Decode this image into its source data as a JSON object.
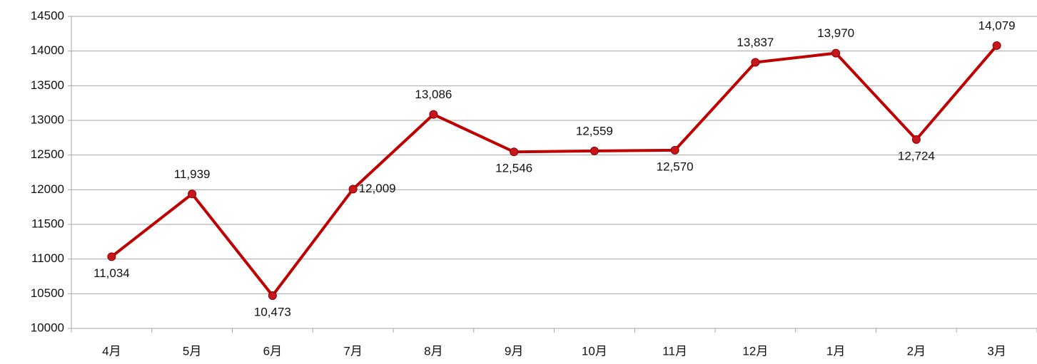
{
  "chart_data": {
    "type": "line",
    "categories": [
      "4月",
      "5月",
      "6月",
      "7月",
      "8月",
      "9月",
      "10月",
      "11月",
      "12月",
      "1月",
      "2月",
      "3月"
    ],
    "series": [
      {
        "color": "#c00000",
        "values": [
          11034,
          11939,
          10473,
          12009,
          13086,
          12546,
          12559,
          12570,
          13837,
          13970,
          12724,
          14079
        ],
        "value_labels": [
          "11,034",
          "11,939",
          "10,473",
          "12,009",
          "13,086",
          "12,546",
          "12,559",
          "12,570",
          "13,837",
          "13,970",
          "12,724",
          "14,079"
        ]
      }
    ],
    "ylim": [
      10000,
      14500
    ],
    "yticks": [
      10000,
      10500,
      11000,
      11500,
      12000,
      12500,
      13000,
      13500,
      14000,
      14500
    ],
    "grid": true
  }
}
